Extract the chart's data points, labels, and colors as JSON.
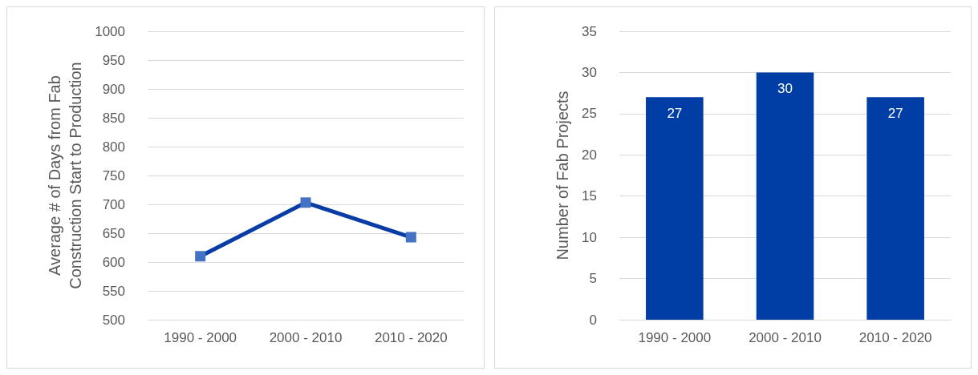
{
  "chart_data": [
    {
      "type": "line",
      "ylabel": "Average # of Days from Fab Construction Start to Production",
      "categories": [
        "1990 - 2000",
        "2000 - 2010",
        "2010 - 2020"
      ],
      "series": [
        {
          "color": "#0a3ca5",
          "values": [
            610,
            703,
            643
          ]
        }
      ],
      "ylim": [
        500,
        1000
      ],
      "yticks": [
        500,
        550,
        600,
        650,
        700,
        750,
        800,
        850,
        900,
        950,
        1000
      ],
      "grid": "y",
      "marker": "square"
    },
    {
      "type": "bar",
      "ylabel": "Number of Fab Projects",
      "categories": [
        "1990 - 2000",
        "2000 - 2010",
        "2010 - 2020"
      ],
      "series": [
        {
          "color": "#003da5",
          "values": [
            27,
            30,
            27
          ]
        }
      ],
      "ylim": [
        0,
        35
      ],
      "yticks": [
        0,
        5,
        10,
        15,
        20,
        25,
        30,
        35
      ],
      "grid": "y",
      "data_labels": true
    }
  ]
}
